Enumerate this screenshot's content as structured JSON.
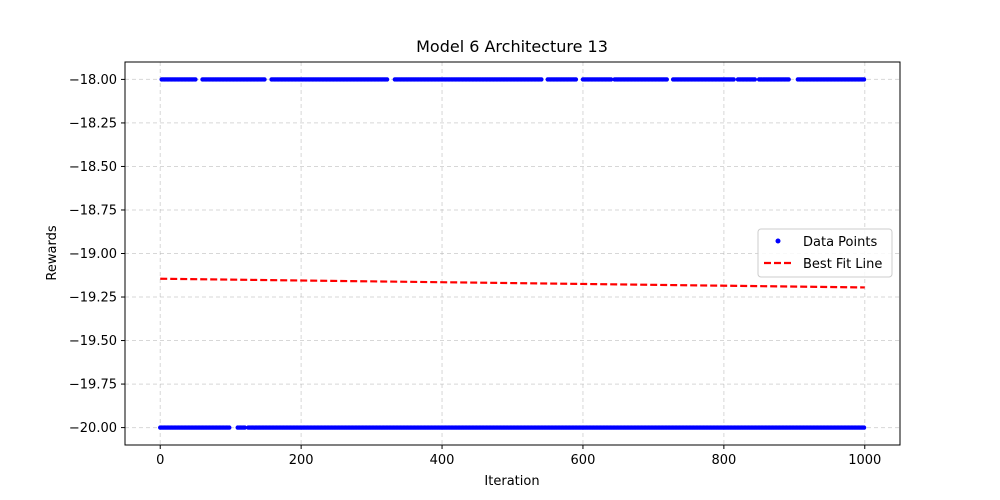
{
  "chart_data": {
    "type": "scatter",
    "title": "Model 6 Architecture 13",
    "xlabel": "Iteration",
    "ylabel": "Rewards",
    "xlim": [
      -50,
      1050
    ],
    "ylim": [
      -20.1,
      -17.9
    ],
    "xticks": [
      0,
      200,
      400,
      600,
      800,
      1000
    ],
    "xtick_labels": [
      "0",
      "200",
      "400",
      "600",
      "800",
      "1000"
    ],
    "yticks": [
      -18.0,
      -18.25,
      -18.5,
      -18.75,
      -19.0,
      -19.25,
      -19.5,
      -19.75,
      -20.0
    ],
    "ytick_labels": [
      "−18.00",
      "−18.25",
      "−18.50",
      "−18.75",
      "−19.00",
      "−19.25",
      "−19.50",
      "−19.75",
      "−20.00"
    ],
    "grid": true,
    "legend": {
      "placement": "center-right",
      "entries": [
        "Data Points",
        "Best Fit Line"
      ]
    },
    "series": [
      {
        "name": "Data Points",
        "kind": "scatter",
        "color": "#0000ff",
        "groups": [
          {
            "y": -18.0,
            "x_ranges": [
              [
                2,
                50
              ],
              [
                60,
                148
              ],
              [
                158,
                322
              ],
              [
                333,
                542
              ],
              [
                550,
                590
              ],
              [
                600,
                640
              ],
              [
                645,
                720
              ],
              [
                728,
                815
              ],
              [
                820,
                845
              ],
              [
                850,
                892
              ],
              [
                905,
                1000
              ]
            ]
          },
          {
            "y": -20.0,
            "x_ranges": [
              [
                0,
                98
              ],
              [
                110,
                120
              ],
              [
                125,
                1000
              ]
            ]
          }
        ]
      },
      {
        "name": "Best Fit Line",
        "kind": "line",
        "color": "#ff0000",
        "style": "dashed",
        "x": [
          0,
          1000
        ],
        "y": [
          -19.145,
          -19.195
        ]
      }
    ]
  }
}
